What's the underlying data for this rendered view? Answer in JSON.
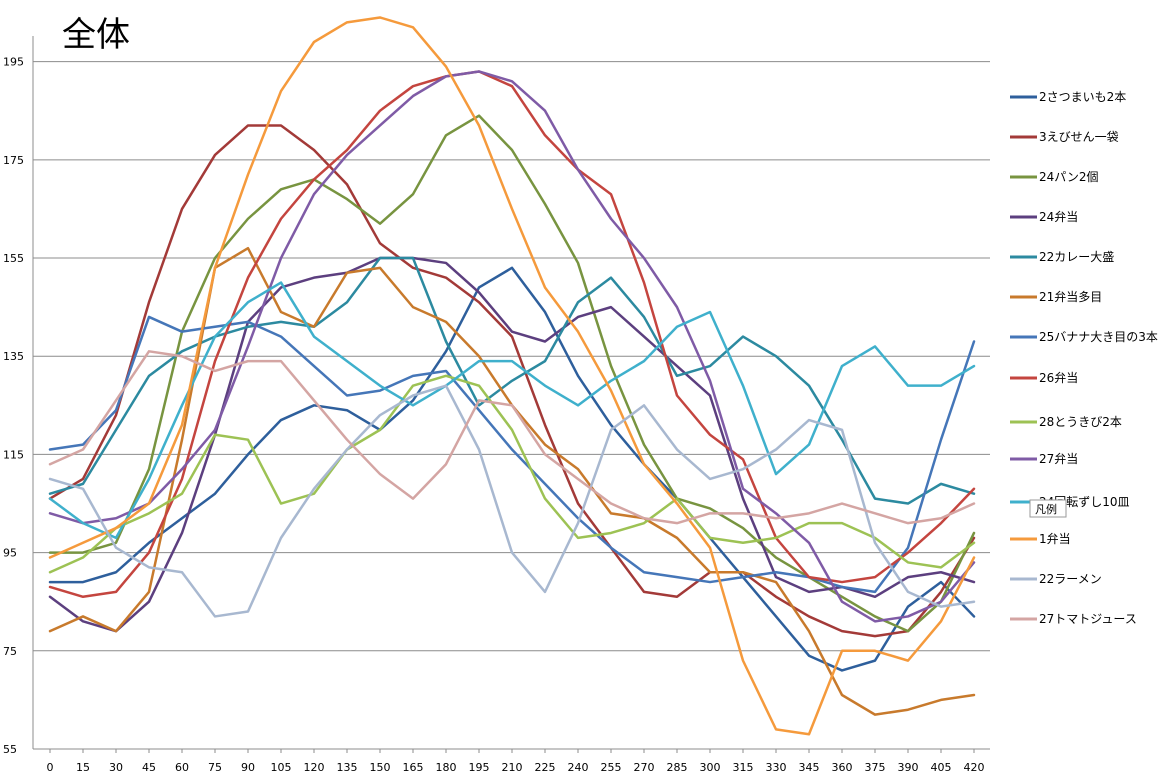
{
  "chart_data": {
    "type": "line",
    "title": "全体",
    "xlabel": "",
    "ylabel": "",
    "ylim": [
      55,
      199
    ],
    "yticks": [
      55,
      75,
      95,
      115,
      135,
      155,
      175,
      195
    ],
    "grid": true,
    "legend_position": "right",
    "legend_title": "凡例",
    "x": [
      0,
      15,
      30,
      45,
      60,
      75,
      90,
      105,
      120,
      135,
      150,
      165,
      180,
      195,
      210,
      225,
      240,
      255,
      270,
      285,
      300,
      315,
      330,
      345,
      360,
      375,
      390,
      405,
      420
    ],
    "series": [
      {
        "name": "2さつまいも2本",
        "color": "#2e5f9c",
        "values": [
          89,
          89,
          91,
          97,
          102,
          107,
          115,
          122,
          125,
          124,
          120,
          126,
          136,
          149,
          153,
          144,
          131,
          121,
          113,
          106,
          98,
          90,
          82,
          74,
          71,
          73,
          84,
          89,
          82
        ]
      },
      {
        "name": "3えびせん一袋",
        "color": "#a33a38",
        "values": [
          106,
          110,
          123,
          146,
          165,
          176,
          182,
          182,
          177,
          170,
          158,
          153,
          151,
          146,
          139,
          121,
          105,
          96,
          87,
          86,
          91,
          91,
          86,
          82,
          79,
          78,
          79,
          87,
          98
        ]
      },
      {
        "name": "24パン2個",
        "color": "#789440",
        "values": [
          95,
          95,
          97,
          112,
          140,
          155,
          163,
          169,
          171,
          167,
          162,
          168,
          180,
          184,
          177,
          166,
          154,
          133,
          117,
          106,
          104,
          100,
          94,
          90,
          86,
          82,
          79,
          85,
          99
        ]
      },
      {
        "name": "24弁当",
        "color": "#5c3f7f",
        "values": [
          86,
          81,
          79,
          85,
          99,
          119,
          142,
          149,
          151,
          152,
          155,
          155,
          154,
          148,
          140,
          138,
          143,
          145,
          139,
          133,
          127,
          106,
          90,
          87,
          88,
          86,
          90,
          91,
          89
        ]
      },
      {
        "name": "22カレー大盛",
        "color": "#2c8aa0",
        "values": [
          107,
          109,
          120,
          131,
          136,
          139,
          141,
          142,
          141,
          146,
          155,
          155,
          138,
          125,
          130,
          134,
          146,
          151,
          143,
          131,
          133,
          139,
          135,
          129,
          118,
          106,
          105,
          109,
          107
        ]
      },
      {
        "name": "21弁当多目",
        "color": "#c87a2c",
        "values": [
          79,
          82,
          79,
          87,
          118,
          153,
          157,
          144,
          141,
          152,
          153,
          145,
          142,
          135,
          125,
          117,
          112,
          103,
          102,
          98,
          91,
          91,
          89,
          79,
          66,
          62,
          63,
          65,
          66
        ]
      },
      {
        "name": "25バナナ大き目の3本",
        "color": "#4576b8",
        "values": [
          116,
          117,
          124,
          143,
          140,
          141,
          142,
          139,
          133,
          127,
          128,
          131,
          132,
          124,
          116,
          109,
          102,
          96,
          91,
          90,
          89,
          90,
          91,
          90,
          88,
          87,
          96,
          118,
          138
        ]
      },
      {
        "name": "26弁当",
        "color": "#c4453f",
        "values": [
          88,
          86,
          87,
          95,
          110,
          134,
          151,
          163,
          171,
          177,
          185,
          190,
          192,
          193,
          190,
          180,
          173,
          168,
          150,
          127,
          119,
          114,
          98,
          90,
          89,
          90,
          95,
          101,
          108
        ]
      },
      {
        "name": "28とうきび2本",
        "color": "#9dc254",
        "values": [
          91,
          94,
          100,
          103,
          107,
          119,
          118,
          105,
          107,
          116,
          120,
          129,
          131,
          129,
          120,
          106,
          98,
          99,
          101,
          106,
          98,
          97,
          98,
          101,
          101,
          98,
          93,
          92,
          97
        ]
      },
      {
        "name": "27弁当",
        "color": "#7f5ba6",
        "values": [
          103,
          101,
          102,
          105,
          112,
          120,
          137,
          155,
          168,
          176,
          182,
          188,
          192,
          193,
          191,
          185,
          173,
          163,
          155,
          145,
          130,
          108,
          103,
          97,
          85,
          81,
          82,
          85,
          93
        ]
      },
      {
        "name": "24回転ずし10皿",
        "color": "#3fb0cc",
        "values": [
          106,
          101,
          98,
          110,
          125,
          139,
          146,
          150,
          139,
          134,
          129,
          125,
          129,
          134,
          134,
          129,
          125,
          130,
          134,
          141,
          144,
          129,
          111,
          117,
          133,
          137,
          129,
          129,
          133
        ]
      },
      {
        "name": "1弁当",
        "color": "#f59a3c",
        "values": [
          94,
          97,
          100,
          105,
          121,
          153,
          172,
          189,
          199,
          203,
          204,
          202,
          194,
          182,
          165,
          149,
          140,
          128,
          113,
          105,
          96,
          73,
          59,
          58,
          75,
          75,
          73,
          81,
          94
        ]
      },
      {
        "name": "22ラーメン",
        "color": "#a8b8d0",
        "values": [
          110,
          108,
          96,
          92,
          91,
          82,
          83,
          98,
          108,
          116,
          123,
          127,
          129,
          116,
          95,
          87,
          101,
          120,
          125,
          116,
          110,
          112,
          116,
          122,
          120,
          97,
          87,
          84,
          85
        ]
      },
      {
        "name": "27トマトジュース",
        "color": "#d4a5a3",
        "values": [
          113,
          116,
          126,
          136,
          135,
          132,
          134,
          134,
          126,
          118,
          111,
          106,
          113,
          126,
          125,
          115,
          110,
          105,
          102,
          101,
          103,
          103,
          102,
          103,
          105,
          103,
          101,
          102,
          105
        ]
      }
    ]
  }
}
